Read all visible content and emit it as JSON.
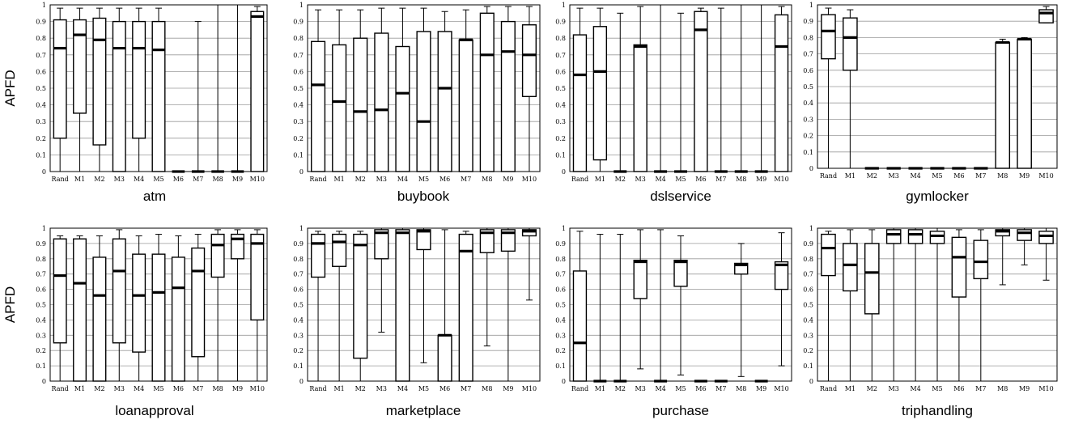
{
  "figure": {
    "ylabel": "APFD",
    "categories": [
      "Rand",
      "M1",
      "M2",
      "M3",
      "M4",
      "M5",
      "M6",
      "M7",
      "M8",
      "M9",
      "M10"
    ],
    "yticks": [
      "0",
      "0.1",
      "0.2",
      "0.3",
      "0.4",
      "0.5",
      "0.6",
      "0.7",
      "0.8",
      "0.9",
      "1"
    ]
  },
  "chart_data": [
    {
      "type": "boxplot",
      "title": "atm",
      "ylabel": "APFD",
      "ylim": [
        0,
        1
      ],
      "categories": [
        "Rand",
        "M1",
        "M2",
        "M3",
        "M4",
        "M5",
        "M6",
        "M7",
        "M8",
        "M9",
        "M10"
      ],
      "boxes": [
        {
          "min": 0,
          "q1": 0.2,
          "median": 0.74,
          "q3": 0.91,
          "max": 0.98
        },
        {
          "min": 0,
          "q1": 0.35,
          "median": 0.82,
          "q3": 0.91,
          "max": 0.98
        },
        {
          "min": 0,
          "q1": 0.16,
          "median": 0.79,
          "q3": 0.92,
          "max": 0.98
        },
        {
          "min": 0,
          "q1": 0,
          "median": 0.74,
          "q3": 0.9,
          "max": 0.98
        },
        {
          "min": 0,
          "q1": 0.2,
          "median": 0.74,
          "q3": 0.9,
          "max": 0.98
        },
        {
          "min": 0,
          "q1": 0,
          "median": 0.73,
          "q3": 0.9,
          "max": 0.98
        },
        {
          "min": 0,
          "q1": 0,
          "median": 0,
          "q3": 0,
          "max": 0
        },
        {
          "min": 0,
          "q1": 0,
          "median": 0,
          "q3": 0,
          "max": 0.9
        },
        {
          "min": 0,
          "q1": 0,
          "median": 0,
          "q3": 0,
          "max": 1
        },
        {
          "min": 0,
          "q1": 0,
          "median": 0,
          "q3": 0,
          "max": 1
        },
        {
          "min": 0,
          "q1": 0,
          "median": 0.93,
          "q3": 0.96,
          "max": 0.99
        }
      ]
    },
    {
      "type": "boxplot",
      "title": "buybook",
      "ylabel": "",
      "ylim": [
        0,
        1
      ],
      "categories": [
        "Rand",
        "M1",
        "M2",
        "M3",
        "M4",
        "M5",
        "M6",
        "M7",
        "M8",
        "M9",
        "M10"
      ],
      "boxes": [
        {
          "min": 0,
          "q1": 0,
          "median": 0.52,
          "q3": 0.78,
          "max": 0.97
        },
        {
          "min": 0,
          "q1": 0,
          "median": 0.42,
          "q3": 0.76,
          "max": 0.97
        },
        {
          "min": 0,
          "q1": 0,
          "median": 0.36,
          "q3": 0.8,
          "max": 0.97
        },
        {
          "min": 0,
          "q1": 0,
          "median": 0.37,
          "q3": 0.83,
          "max": 0.98
        },
        {
          "min": 0,
          "q1": 0,
          "median": 0.47,
          "q3": 0.75,
          "max": 0.98
        },
        {
          "min": 0,
          "q1": 0,
          "median": 0.3,
          "q3": 0.84,
          "max": 0.98
        },
        {
          "min": 0,
          "q1": 0,
          "median": 0.5,
          "q3": 0.84,
          "max": 0.96
        },
        {
          "min": 0,
          "q1": 0,
          "median": 0.79,
          "q3": 0.79,
          "max": 0.97
        },
        {
          "min": 0,
          "q1": 0,
          "median": 0.7,
          "q3": 0.95,
          "max": 0.99
        },
        {
          "min": 0,
          "q1": 0,
          "median": 0.72,
          "q3": 0.9,
          "max": 0.99
        },
        {
          "min": 0,
          "q1": 0.45,
          "median": 0.7,
          "q3": 0.88,
          "max": 0.99
        }
      ]
    },
    {
      "type": "boxplot",
      "title": "dslservice",
      "ylabel": "",
      "ylim": [
        0,
        1
      ],
      "categories": [
        "Rand",
        "M1",
        "M2",
        "M3",
        "M4",
        "M5",
        "M6",
        "M7",
        "M8",
        "M9",
        "M10"
      ],
      "boxes": [
        {
          "min": 0,
          "q1": 0,
          "median": 0.58,
          "q3": 0.82,
          "max": 0.98
        },
        {
          "min": 0,
          "q1": 0.07,
          "median": 0.6,
          "q3": 0.87,
          "max": 0.98
        },
        {
          "min": 0,
          "q1": 0,
          "median": 0,
          "q3": 0,
          "max": 0.95
        },
        {
          "min": 0,
          "q1": 0,
          "median": 0.75,
          "q3": 0.76,
          "max": 0.99
        },
        {
          "min": 0,
          "q1": 0,
          "median": 0,
          "q3": 0,
          "max": 1
        },
        {
          "min": 0,
          "q1": 0,
          "median": 0,
          "q3": 0,
          "max": 0.95
        },
        {
          "min": 0,
          "q1": 0,
          "median": 0.85,
          "q3": 0.96,
          "max": 0.98
        },
        {
          "min": 0,
          "q1": 0,
          "median": 0,
          "q3": 0,
          "max": 0.98
        },
        {
          "min": 0,
          "q1": 0,
          "median": 0,
          "q3": 0,
          "max": 1
        },
        {
          "min": 0,
          "q1": 0,
          "median": 0,
          "q3": 0,
          "max": 1
        },
        {
          "min": 0,
          "q1": 0,
          "median": 0.75,
          "q3": 0.94,
          "max": 0.99
        }
      ]
    },
    {
      "type": "boxplot",
      "title": "gymlocker",
      "ylabel": "",
      "ylim": [
        0,
        1
      ],
      "categories": [
        "Rand",
        "M1",
        "M2",
        "M3",
        "M4",
        "M5",
        "M6",
        "M7",
        "M8",
        "M9",
        "M10"
      ],
      "boxes": [
        {
          "min": 0,
          "q1": 0.67,
          "median": 0.84,
          "q3": 0.94,
          "max": 0.98
        },
        {
          "min": 0,
          "q1": 0.6,
          "median": 0.8,
          "q3": 0.92,
          "max": 0.97
        },
        {
          "min": 0,
          "q1": 0,
          "median": 0,
          "q3": 0,
          "max": 0
        },
        {
          "min": 0,
          "q1": 0,
          "median": 0,
          "q3": 0,
          "max": 0
        },
        {
          "min": 0,
          "q1": 0,
          "median": 0,
          "q3": 0,
          "max": 0
        },
        {
          "min": 0,
          "q1": 0,
          "median": 0,
          "q3": 0,
          "max": 0
        },
        {
          "min": 0,
          "q1": 0,
          "median": 0,
          "q3": 0,
          "max": 0
        },
        {
          "min": 0,
          "q1": 0,
          "median": 0,
          "q3": 0,
          "max": 0
        },
        {
          "min": 0,
          "q1": 0,
          "median": 0.77,
          "q3": 0.77,
          "max": 0.79
        },
        {
          "min": 0,
          "q1": 0,
          "median": 0.79,
          "q3": 0.79,
          "max": 0.8
        },
        {
          "min": 0.89,
          "q1": 0.89,
          "median": 0.95,
          "q3": 0.97,
          "max": 0.99
        }
      ]
    },
    {
      "type": "boxplot",
      "title": "loanapproval",
      "ylabel": "APFD",
      "ylim": [
        0,
        1
      ],
      "categories": [
        "Rand",
        "M1",
        "M2",
        "M3",
        "M4",
        "M5",
        "M6",
        "M7",
        "M8",
        "M9",
        "M10"
      ],
      "boxes": [
        {
          "min": 0,
          "q1": 0.25,
          "median": 0.69,
          "q3": 0.93,
          "max": 0.95
        },
        {
          "min": 0,
          "q1": 0,
          "median": 0.64,
          "q3": 0.93,
          "max": 0.95
        },
        {
          "min": 0,
          "q1": 0,
          "median": 0.56,
          "q3": 0.81,
          "max": 0.95
        },
        {
          "min": 0,
          "q1": 0.25,
          "median": 0.72,
          "q3": 0.93,
          "max": 0.99
        },
        {
          "min": 0,
          "q1": 0.19,
          "median": 0.56,
          "q3": 0.83,
          "max": 0.95
        },
        {
          "min": 0,
          "q1": 0,
          "median": 0.58,
          "q3": 0.83,
          "max": 0.96
        },
        {
          "min": 0,
          "q1": 0,
          "median": 0.61,
          "q3": 0.81,
          "max": 0.95
        },
        {
          "min": 0,
          "q1": 0.16,
          "median": 0.72,
          "q3": 0.87,
          "max": 0.96
        },
        {
          "min": 0,
          "q1": 0.68,
          "median": 0.89,
          "q3": 0.96,
          "max": 0.99
        },
        {
          "min": 0,
          "q1": 0.8,
          "median": 0.93,
          "q3": 0.96,
          "max": 0.99
        },
        {
          "min": 0,
          "q1": 0.4,
          "median": 0.9,
          "q3": 0.96,
          "max": 0.99
        }
      ]
    },
    {
      "type": "boxplot",
      "title": "marketplace",
      "ylabel": "",
      "ylim": [
        0,
        1
      ],
      "categories": [
        "Rand",
        "M1",
        "M2",
        "M3",
        "M4",
        "M5",
        "M6",
        "M7",
        "M8",
        "M9",
        "M10"
      ],
      "boxes": [
        {
          "min": 0,
          "q1": 0.68,
          "median": 0.9,
          "q3": 0.96,
          "max": 0.98
        },
        {
          "min": 0,
          "q1": 0.75,
          "median": 0.91,
          "q3": 0.96,
          "max": 0.98
        },
        {
          "min": 0,
          "q1": 0.15,
          "median": 0.89,
          "q3": 0.96,
          "max": 0.98
        },
        {
          "min": 0.32,
          "q1": 0.8,
          "median": 0.97,
          "q3": 0.99,
          "max": 1
        },
        {
          "min": 0,
          "q1": 0,
          "median": 0.97,
          "q3": 0.99,
          "max": 1
        },
        {
          "min": 0.12,
          "q1": 0.86,
          "median": 0.98,
          "q3": 0.99,
          "max": 1
        },
        {
          "min": 0,
          "q1": 0,
          "median": 0.3,
          "q3": 0.3,
          "max": 0.99
        },
        {
          "min": 0,
          "q1": 0,
          "median": 0.85,
          "q3": 0.96,
          "max": 0.98
        },
        {
          "min": 0.23,
          "q1": 0.84,
          "median": 0.97,
          "q3": 0.99,
          "max": 1
        },
        {
          "min": 0,
          "q1": 0.85,
          "median": 0.97,
          "q3": 0.99,
          "max": 1
        },
        {
          "min": 0.53,
          "q1": 0.95,
          "median": 0.98,
          "q3": 0.99,
          "max": 1
        }
      ]
    },
    {
      "type": "boxplot",
      "title": "purchase",
      "ylabel": "",
      "ylim": [
        0,
        1
      ],
      "categories": [
        "Rand",
        "M1",
        "M2",
        "M3",
        "M4",
        "M5",
        "M6",
        "M7",
        "M8",
        "M9",
        "M10"
      ],
      "boxes": [
        {
          "min": 0,
          "q1": 0,
          "median": 0.25,
          "q3": 0.72,
          "max": 0.98
        },
        {
          "min": 0,
          "q1": 0,
          "median": 0,
          "q3": 0,
          "max": 0.96
        },
        {
          "min": 0,
          "q1": 0,
          "median": 0,
          "q3": 0,
          "max": 0.96
        },
        {
          "min": 0.08,
          "q1": 0.54,
          "median": 0.78,
          "q3": 0.79,
          "max": 0.99
        },
        {
          "min": 0,
          "q1": 0,
          "median": 0,
          "q3": 0,
          "max": 0.99
        },
        {
          "min": 0.04,
          "q1": 0.62,
          "median": 0.78,
          "q3": 0.79,
          "max": 0.95
        },
        {
          "min": 0,
          "q1": 0,
          "median": 0,
          "q3": 0,
          "max": 0
        },
        {
          "min": 0,
          "q1": 0,
          "median": 0,
          "q3": 0,
          "max": 0
        },
        {
          "min": 0.03,
          "q1": 0.7,
          "median": 0.76,
          "q3": 0.77,
          "max": 0.9
        },
        {
          "min": 0,
          "q1": 0,
          "median": 0,
          "q3": 0,
          "max": 0
        },
        {
          "min": 0.1,
          "q1": 0.6,
          "median": 0.76,
          "q3": 0.78,
          "max": 0.97
        }
      ]
    },
    {
      "type": "boxplot",
      "title": "triphandling",
      "ylabel": "",
      "ylim": [
        0,
        1
      ],
      "categories": [
        "Rand",
        "M1",
        "M2",
        "M3",
        "M4",
        "M5",
        "M6",
        "M7",
        "M8",
        "M9",
        "M10"
      ],
      "boxes": [
        {
          "min": 0,
          "q1": 0.69,
          "median": 0.87,
          "q3": 0.96,
          "max": 0.98
        },
        {
          "min": 0,
          "q1": 0.59,
          "median": 0.76,
          "q3": 0.9,
          "max": 0.99
        },
        {
          "min": 0,
          "q1": 0.44,
          "median": 0.71,
          "q3": 0.9,
          "max": 0.99
        },
        {
          "min": 0,
          "q1": 0.9,
          "median": 0.96,
          "q3": 0.99,
          "max": 1
        },
        {
          "min": 0,
          "q1": 0.9,
          "median": 0.96,
          "q3": 0.99,
          "max": 1
        },
        {
          "min": 0,
          "q1": 0.9,
          "median": 0.95,
          "q3": 0.98,
          "max": 1
        },
        {
          "min": 0,
          "q1": 0.55,
          "median": 0.81,
          "q3": 0.94,
          "max": 0.99
        },
        {
          "min": 0,
          "q1": 0.67,
          "median": 0.78,
          "q3": 0.92,
          "max": 0.99
        },
        {
          "min": 0.63,
          "q1": 0.95,
          "median": 0.98,
          "q3": 0.99,
          "max": 1
        },
        {
          "min": 0.76,
          "q1": 0.92,
          "median": 0.97,
          "q3": 0.99,
          "max": 1
        },
        {
          "min": 0.66,
          "q1": 0.9,
          "median": 0.95,
          "q3": 0.98,
          "max": 1
        }
      ]
    }
  ]
}
